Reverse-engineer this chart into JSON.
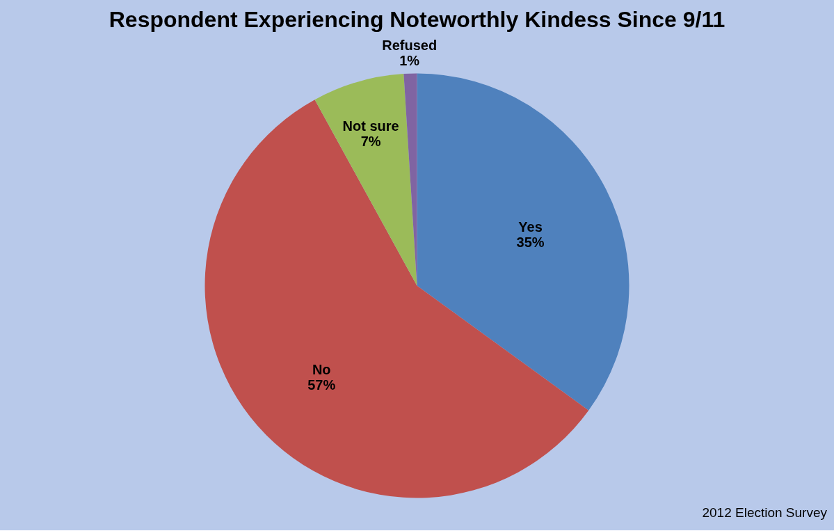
{
  "chart_data": {
    "type": "pie",
    "title": "Respondent Experiencing Noteworthly Kindess Since 9/11",
    "categories": [
      "Yes",
      "No",
      "Not sure",
      "Refused"
    ],
    "values": [
      35,
      57,
      7,
      1
    ],
    "value_labels": [
      "35%",
      "57%",
      "7%",
      "1%"
    ],
    "colors": [
      "#4f81bd",
      "#c0504d",
      "#9bbb59",
      "#8064a2"
    ],
    "annotations": [
      "2012 Election Survey"
    ],
    "legend": false
  }
}
